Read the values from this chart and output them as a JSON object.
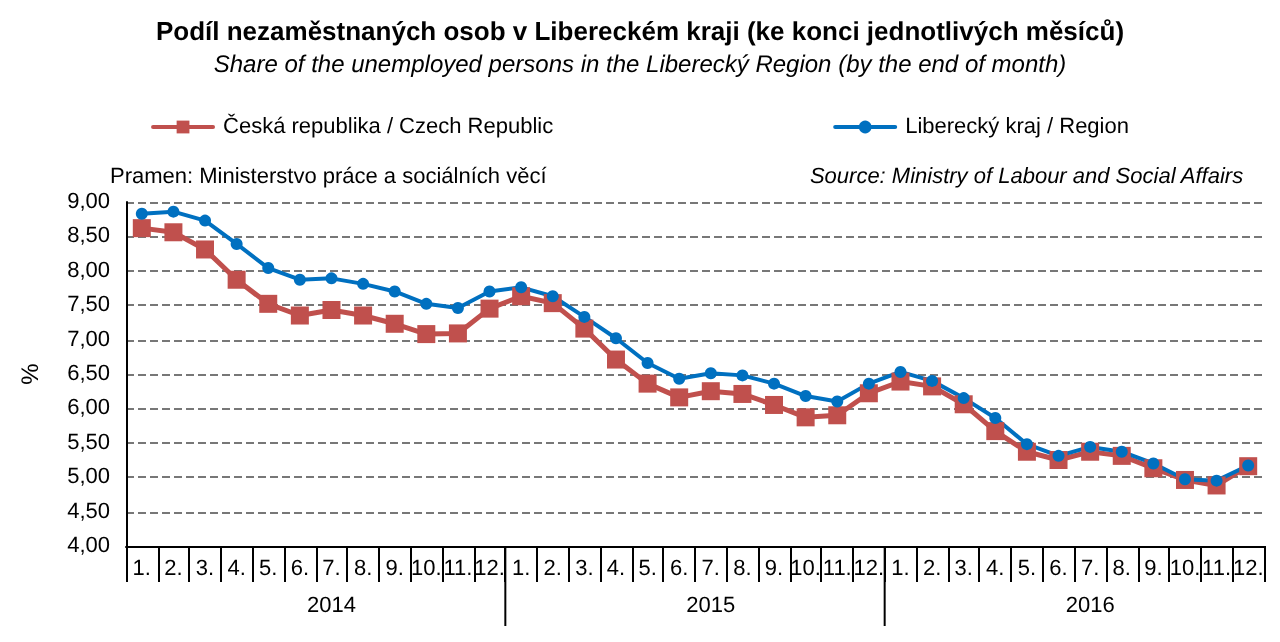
{
  "chart_data": {
    "type": "line",
    "title": "Podíl nezaměstnaných osob v Libereckém kraji (ke konci jednotlivých měsíců)",
    "subtitle": "Share of the unemployed persons in the Liberecký Region (by the end of month)",
    "ylabel": "%",
    "categories": [
      "1.",
      "2.",
      "3.",
      "4.",
      "5.",
      "6.",
      "7.",
      "8.",
      "9.",
      "10.",
      "11.",
      "12.",
      "1.",
      "2.",
      "3.",
      "4.",
      "5.",
      "6.",
      "7.",
      "8.",
      "9.",
      "10.",
      "11.",
      "12.",
      "1.",
      "2.",
      "3.",
      "4.",
      "5.",
      "6.",
      "7.",
      "8.",
      "9.",
      "10.",
      "11.",
      "12."
    ],
    "series": [
      {
        "name": "Česká republika / Czech Republic",
        "color": "#c0504d",
        "marker": "square",
        "values": [
          8.62,
          8.56,
          8.31,
          7.87,
          7.52,
          7.35,
          7.43,
          7.35,
          7.23,
          7.08,
          7.09,
          7.45,
          7.63,
          7.53,
          7.16,
          6.71,
          6.36,
          6.16,
          6.25,
          6.21,
          6.05,
          5.87,
          5.9,
          6.22,
          6.39,
          6.32,
          6.06,
          5.67,
          5.37,
          5.25,
          5.37,
          5.31,
          5.13,
          4.96,
          4.88,
          5.16
        ]
      },
      {
        "name": "Liberecký kraj / Region",
        "color": "#0070c0",
        "marker": "circle",
        "values": [
          8.83,
          8.86,
          8.73,
          8.39,
          8.04,
          7.87,
          7.89,
          7.81,
          7.7,
          7.52,
          7.46,
          7.7,
          7.76,
          7.63,
          7.33,
          7.02,
          6.66,
          6.43,
          6.51,
          6.48,
          6.36,
          6.18,
          6.1,
          6.36,
          6.53,
          6.4,
          6.15,
          5.86,
          5.48,
          5.31,
          5.44,
          5.37,
          5.2,
          4.97,
          4.95,
          5.17
        ]
      }
    ],
    "ylim": [
      4,
      9
    ],
    "yticks": [
      {
        "value": 4,
        "label": "4,00"
      },
      {
        "value": 4.5,
        "label": "4,50"
      },
      {
        "value": 5,
        "label": "5,00"
      },
      {
        "value": 5.5,
        "label": "5,50"
      },
      {
        "value": 6,
        "label": "6,00"
      },
      {
        "value": 6.5,
        "label": "6,50"
      },
      {
        "value": 7,
        "label": "7,00"
      },
      {
        "value": 7.5,
        "label": "7,50"
      },
      {
        "value": 8,
        "label": "8,00"
      },
      {
        "value": 8.5,
        "label": "8,50"
      },
      {
        "value": 9,
        "label": "9,00"
      }
    ],
    "grid": "y",
    "legend": "top",
    "line_style": "solid",
    "annotations": [
      "Pramen: Ministerstvo práce a sociálních věcí",
      "Source: Ministry of Labour and Social Affairs",
      "2014",
      "2015",
      "2016"
    ]
  }
}
